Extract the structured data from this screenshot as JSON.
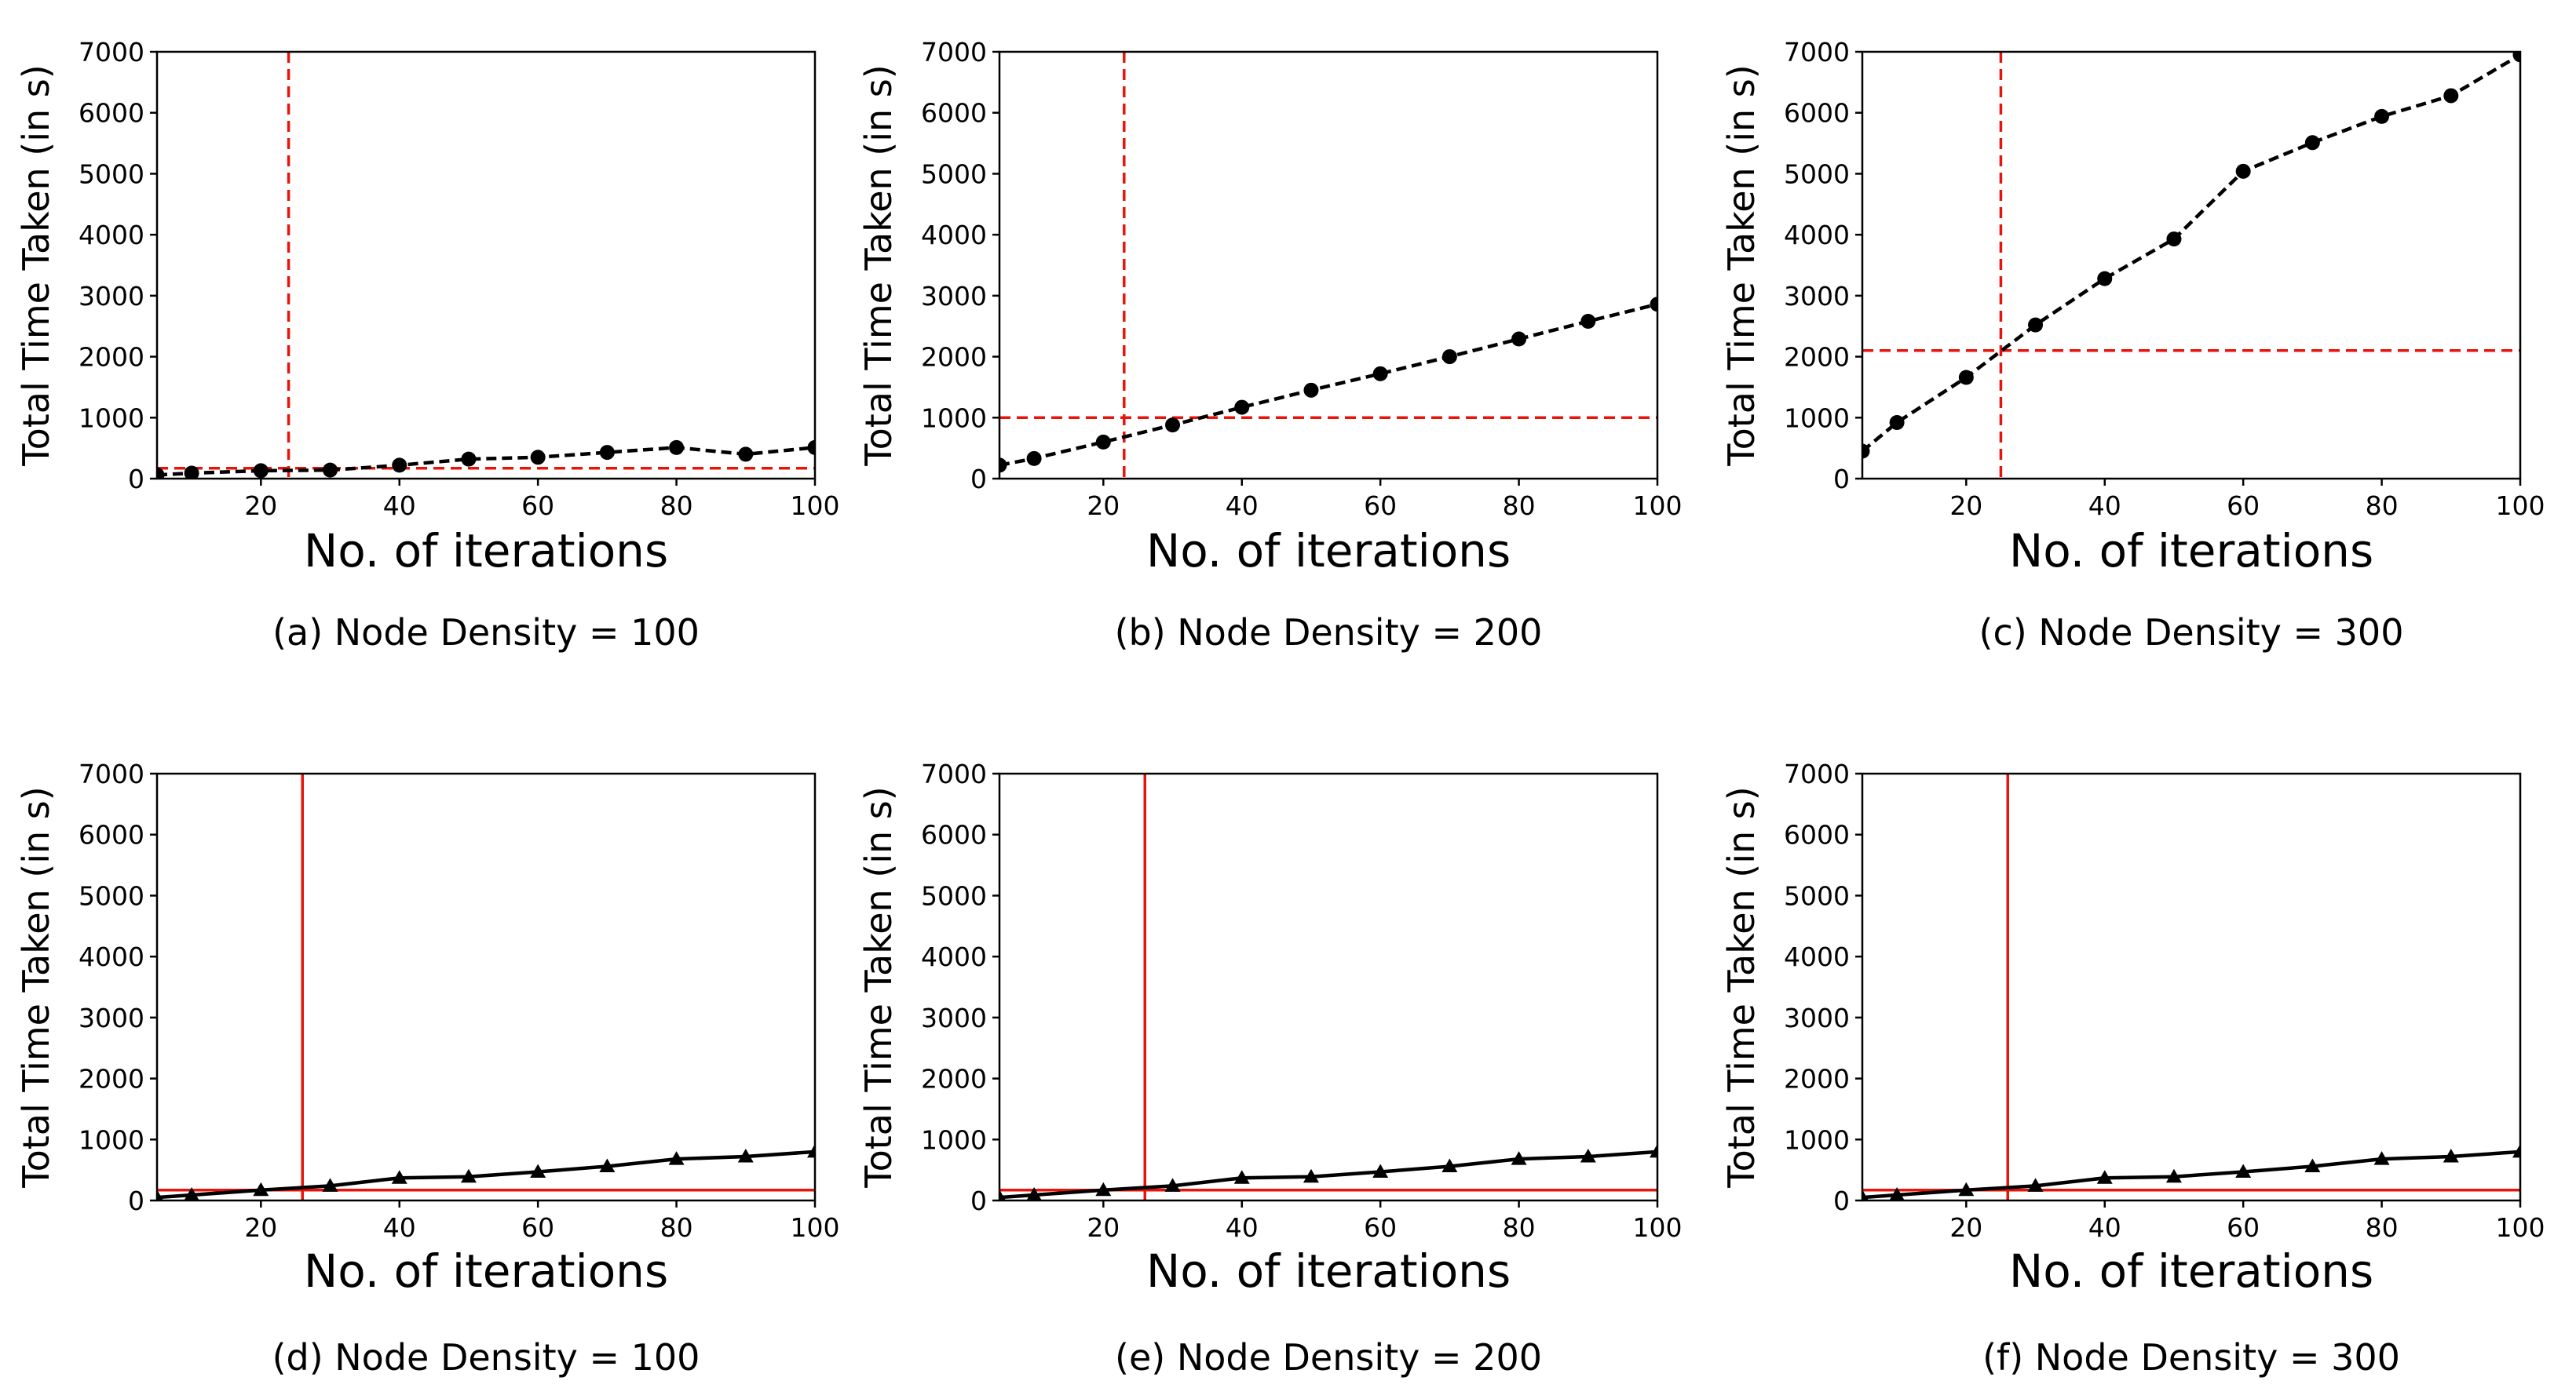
{
  "figure": {
    "colors": {
      "series": "#000000",
      "threshold": "#e8140c",
      "axis": "#000000"
    }
  },
  "chart_data": [
    {
      "type": "line",
      "caption": "(a) Node Density = 100",
      "xlabel": "No. of iterations",
      "ylabel": "Total Time Taken (in s)",
      "xlim": [
        5,
        100
      ],
      "ylim": [
        0,
        7000
      ],
      "xticks": [
        20,
        40,
        60,
        80,
        100
      ],
      "yticks": [
        0,
        1000,
        2000,
        3000,
        4000,
        5000,
        6000,
        7000
      ],
      "series": [
        {
          "name": "time",
          "marker": "circle",
          "linestyle": "dashed",
          "x": [
            5,
            10,
            20,
            30,
            40,
            50,
            60,
            70,
            80,
            90,
            100
          ],
          "y": [
            60,
            90,
            130,
            140,
            220,
            320,
            350,
            430,
            510,
            400,
            510
          ]
        }
      ],
      "threshold": {
        "linestyle": "dashed",
        "x": 24,
        "y": 170
      }
    },
    {
      "type": "line",
      "caption": "(b) Node Density = 200",
      "xlabel": "No. of iterations",
      "ylabel": "Total Time Taken (in s)",
      "xlim": [
        5,
        100
      ],
      "ylim": [
        0,
        7000
      ],
      "xticks": [
        20,
        40,
        60,
        80,
        100
      ],
      "yticks": [
        0,
        1000,
        2000,
        3000,
        4000,
        5000,
        6000,
        7000
      ],
      "series": [
        {
          "name": "time",
          "marker": "circle",
          "linestyle": "dashed",
          "x": [
            5,
            10,
            20,
            30,
            40,
            50,
            60,
            70,
            80,
            90,
            100
          ],
          "y": [
            220,
            330,
            600,
            880,
            1170,
            1450,
            1720,
            2000,
            2290,
            2580,
            2860
          ]
        }
      ],
      "threshold": {
        "linestyle": "dashed",
        "x": 23,
        "y": 1000
      }
    },
    {
      "type": "line",
      "caption": "(c) Node Density = 300",
      "xlabel": "No. of iterations",
      "ylabel": "Total Time Taken (in s)",
      "xlim": [
        5,
        100
      ],
      "ylim": [
        0,
        7000
      ],
      "xticks": [
        20,
        40,
        60,
        80,
        100
      ],
      "yticks": [
        0,
        1000,
        2000,
        3000,
        4000,
        5000,
        6000,
        7000
      ],
      "series": [
        {
          "name": "time",
          "marker": "circle",
          "linestyle": "dashed",
          "x": [
            5,
            10,
            20,
            30,
            40,
            50,
            60,
            70,
            80,
            90,
            100
          ],
          "y": [
            450,
            920,
            1660,
            2520,
            3280,
            3930,
            5040,
            5510,
            5940,
            6280,
            6950
          ]
        }
      ],
      "threshold": {
        "linestyle": "dashed",
        "x": 25,
        "y": 2100
      }
    },
    {
      "type": "line",
      "caption": "(d) Node Density = 100",
      "xlabel": "No. of iterations",
      "ylabel": "Total Time Taken (in s)",
      "xlim": [
        5,
        100
      ],
      "ylim": [
        0,
        7000
      ],
      "xticks": [
        20,
        40,
        60,
        80,
        100
      ],
      "yticks": [
        0,
        1000,
        2000,
        3000,
        4000,
        5000,
        6000,
        7000
      ],
      "series": [
        {
          "name": "time",
          "marker": "triangle",
          "linestyle": "solid",
          "x": [
            5,
            10,
            20,
            30,
            40,
            50,
            60,
            70,
            80,
            90,
            100
          ],
          "y": [
            50,
            90,
            170,
            240,
            370,
            390,
            470,
            560,
            680,
            720,
            800
          ]
        }
      ],
      "threshold": {
        "linestyle": "solid",
        "x": 26,
        "y": 170
      }
    },
    {
      "type": "line",
      "caption": "(e) Node Density = 200",
      "xlabel": "No. of iterations",
      "ylabel": "Total Time Taken (in s)",
      "xlim": [
        5,
        100
      ],
      "ylim": [
        0,
        7000
      ],
      "xticks": [
        20,
        40,
        60,
        80,
        100
      ],
      "yticks": [
        0,
        1000,
        2000,
        3000,
        4000,
        5000,
        6000,
        7000
      ],
      "series": [
        {
          "name": "time",
          "marker": "triangle",
          "linestyle": "solid",
          "x": [
            5,
            10,
            20,
            30,
            40,
            50,
            60,
            70,
            80,
            90,
            100
          ],
          "y": [
            50,
            90,
            170,
            240,
            370,
            390,
            470,
            560,
            680,
            720,
            800
          ]
        }
      ],
      "threshold": {
        "linestyle": "solid",
        "x": 26,
        "y": 170
      }
    },
    {
      "type": "line",
      "caption": "(f) Node Density = 300",
      "xlabel": "No. of iterations",
      "ylabel": "Total Time Taken (in s)",
      "xlim": [
        5,
        100
      ],
      "ylim": [
        0,
        7000
      ],
      "xticks": [
        20,
        40,
        60,
        80,
        100
      ],
      "yticks": [
        0,
        1000,
        2000,
        3000,
        4000,
        5000,
        6000,
        7000
      ],
      "series": [
        {
          "name": "time",
          "marker": "triangle",
          "linestyle": "solid",
          "x": [
            5,
            10,
            20,
            30,
            40,
            50,
            60,
            70,
            80,
            90,
            100
          ],
          "y": [
            50,
            90,
            170,
            240,
            370,
            390,
            470,
            560,
            680,
            720,
            800
          ]
        }
      ],
      "threshold": {
        "linestyle": "solid",
        "x": 26,
        "y": 170
      }
    }
  ]
}
